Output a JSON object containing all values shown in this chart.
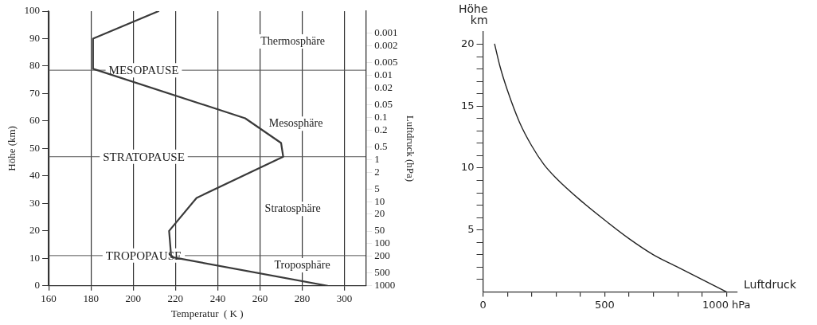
{
  "chart_data": [
    {
      "type": "line",
      "xlabel": "Temperatur  ( K )",
      "ylabel": "Höhe (km)",
      "y2label": "Luftdruck (hPa)",
      "series": [
        {
          "color": "#3a3a3a",
          "x": [
            292,
            218,
            217,
            230,
            271,
            270,
            253,
            181,
            181,
            212
          ],
          "values": [
            0,
            10.5,
            20,
            32,
            47,
            52,
            61,
            79,
            90,
            100
          ]
        }
      ],
      "xlim": [
        160,
        310
      ],
      "xticks": [
        160,
        180,
        200,
        220,
        240,
        260,
        280,
        300
      ],
      "ylim": [
        0,
        100
      ],
      "yticks": [
        0,
        10,
        20,
        30,
        40,
        50,
        60,
        70,
        80,
        90,
        100
      ],
      "y2lim": [
        1000,
        0.0003
      ],
      "y2ticks": [
        1000,
        500,
        200,
        100,
        50,
        20,
        10,
        5,
        2,
        1,
        0.5,
        0.2,
        0.1,
        0.05,
        0.02,
        0.01,
        0.005,
        0.002,
        0.001
      ],
      "log": "y2",
      "ref_lines": [
        {
          "axis": "y",
          "value": 78.5,
          "label": "MESOPAUSE"
        },
        {
          "axis": "y",
          "value": 47,
          "label": "STRATOPAUSE"
        },
        {
          "axis": "y",
          "value": 11,
          "label": "TROPOPAUSE"
        }
      ],
      "annotations": [
        "Thermosphäre",
        "Mesosphäre",
        "Stratosphäre",
        "Troposphäre"
      ],
      "grid": "x",
      "legend": false,
      "marker": "none",
      "line_style": "solid"
    },
    {
      "type": "line",
      "xlabel": "Luftdruck",
      "ylabel": "Höhe km",
      "series": [
        {
          "color": "#222222",
          "x": [
            1000,
            900,
            800,
            700,
            600,
            500,
            400,
            300,
            250,
            200,
            150,
            100,
            70,
            48
          ],
          "values": [
            0,
            1,
            2,
            3,
            4.3,
            5.8,
            7.4,
            9.2,
            10.3,
            11.8,
            13.7,
            16.3,
            18.2,
            20
          ]
        }
      ],
      "xlim": [
        0,
        1045
      ],
      "xticks": [
        0,
        {
          "value": 100,
          "label": null
        },
        {
          "value": 200,
          "label": null
        },
        {
          "value": 300,
          "label": null
        },
        {
          "value": 400,
          "label": null
        },
        500,
        {
          "value": 600,
          "label": null
        },
        {
          "value": 700,
          "label": null
        },
        {
          "value": 800,
          "label": null
        },
        {
          "value": 900,
          "label": null
        },
        {
          "value": 1000,
          "label": "1000 hPa"
        }
      ],
      "ylim": [
        0,
        21
      ],
      "yticks": [
        {
          "value": 1,
          "label": null
        },
        {
          "value": 2,
          "label": null
        },
        {
          "value": 3,
          "label": null
        },
        {
          "value": 4,
          "label": null
        },
        5,
        {
          "value": 6,
          "label": null
        },
        {
          "value": 7,
          "label": null
        },
        {
          "value": 8,
          "label": null
        },
        {
          "value": 9,
          "label": null
        },
        10,
        {
          "value": 11,
          "label": null
        },
        {
          "value": 12,
          "label": null
        },
        {
          "value": 13,
          "label": null
        },
        {
          "value": 14,
          "label": null
        },
        15,
        {
          "value": 16,
          "label": null
        },
        {
          "value": 17,
          "label": null
        },
        {
          "value": 18,
          "label": null
        },
        {
          "value": 19,
          "label": null
        },
        20
      ],
      "grid": false,
      "legend": false,
      "marker": "none",
      "line_style": "solid"
    }
  ]
}
